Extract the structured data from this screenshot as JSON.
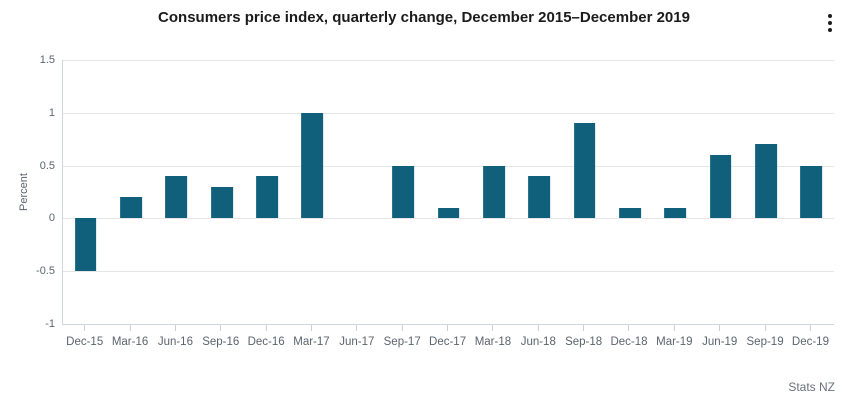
{
  "title": "Consumers price index, quarterly change, December 2015–December 2019",
  "credits": "Stats NZ",
  "menu_icon": "kebab-menu-icon",
  "colors": {
    "bar": "#10607c",
    "axis_line": "#ccd6dd",
    "gridline": "#e6e6e6",
    "title_text": "#1b1b1b",
    "axis_text": "#5a646d"
  },
  "chart_data": {
    "type": "bar",
    "title": "Consumers price index, quarterly change, December 2015–December 2019",
    "categories": [
      "Dec-15",
      "Mar-16",
      "Jun-16",
      "Sep-16",
      "Dec-16",
      "Mar-17",
      "Jun-17",
      "Sep-17",
      "Dec-17",
      "Mar-18",
      "Jun-18",
      "Sep-18",
      "Dec-18",
      "Mar-19",
      "Jun-19",
      "Sep-19",
      "Dec-19"
    ],
    "values": [
      -0.5,
      0.2,
      0.4,
      0.3,
      0.4,
      1.0,
      0.0,
      0.5,
      0.1,
      0.5,
      0.4,
      0.9,
      0.1,
      0.1,
      0.6,
      0.7,
      0.5
    ],
    "xlabel": "",
    "ylabel": "Percent",
    "ylim": [
      -1,
      1.5
    ],
    "yticks": [
      1.5,
      1,
      0.5,
      0,
      -0.5,
      -1
    ],
    "ytick_labels": [
      "1.5",
      "1",
      "0.5",
      "0",
      "-0.5",
      "-1"
    ],
    "grid": true,
    "legend": "none",
    "bar_color": "#10607c"
  }
}
